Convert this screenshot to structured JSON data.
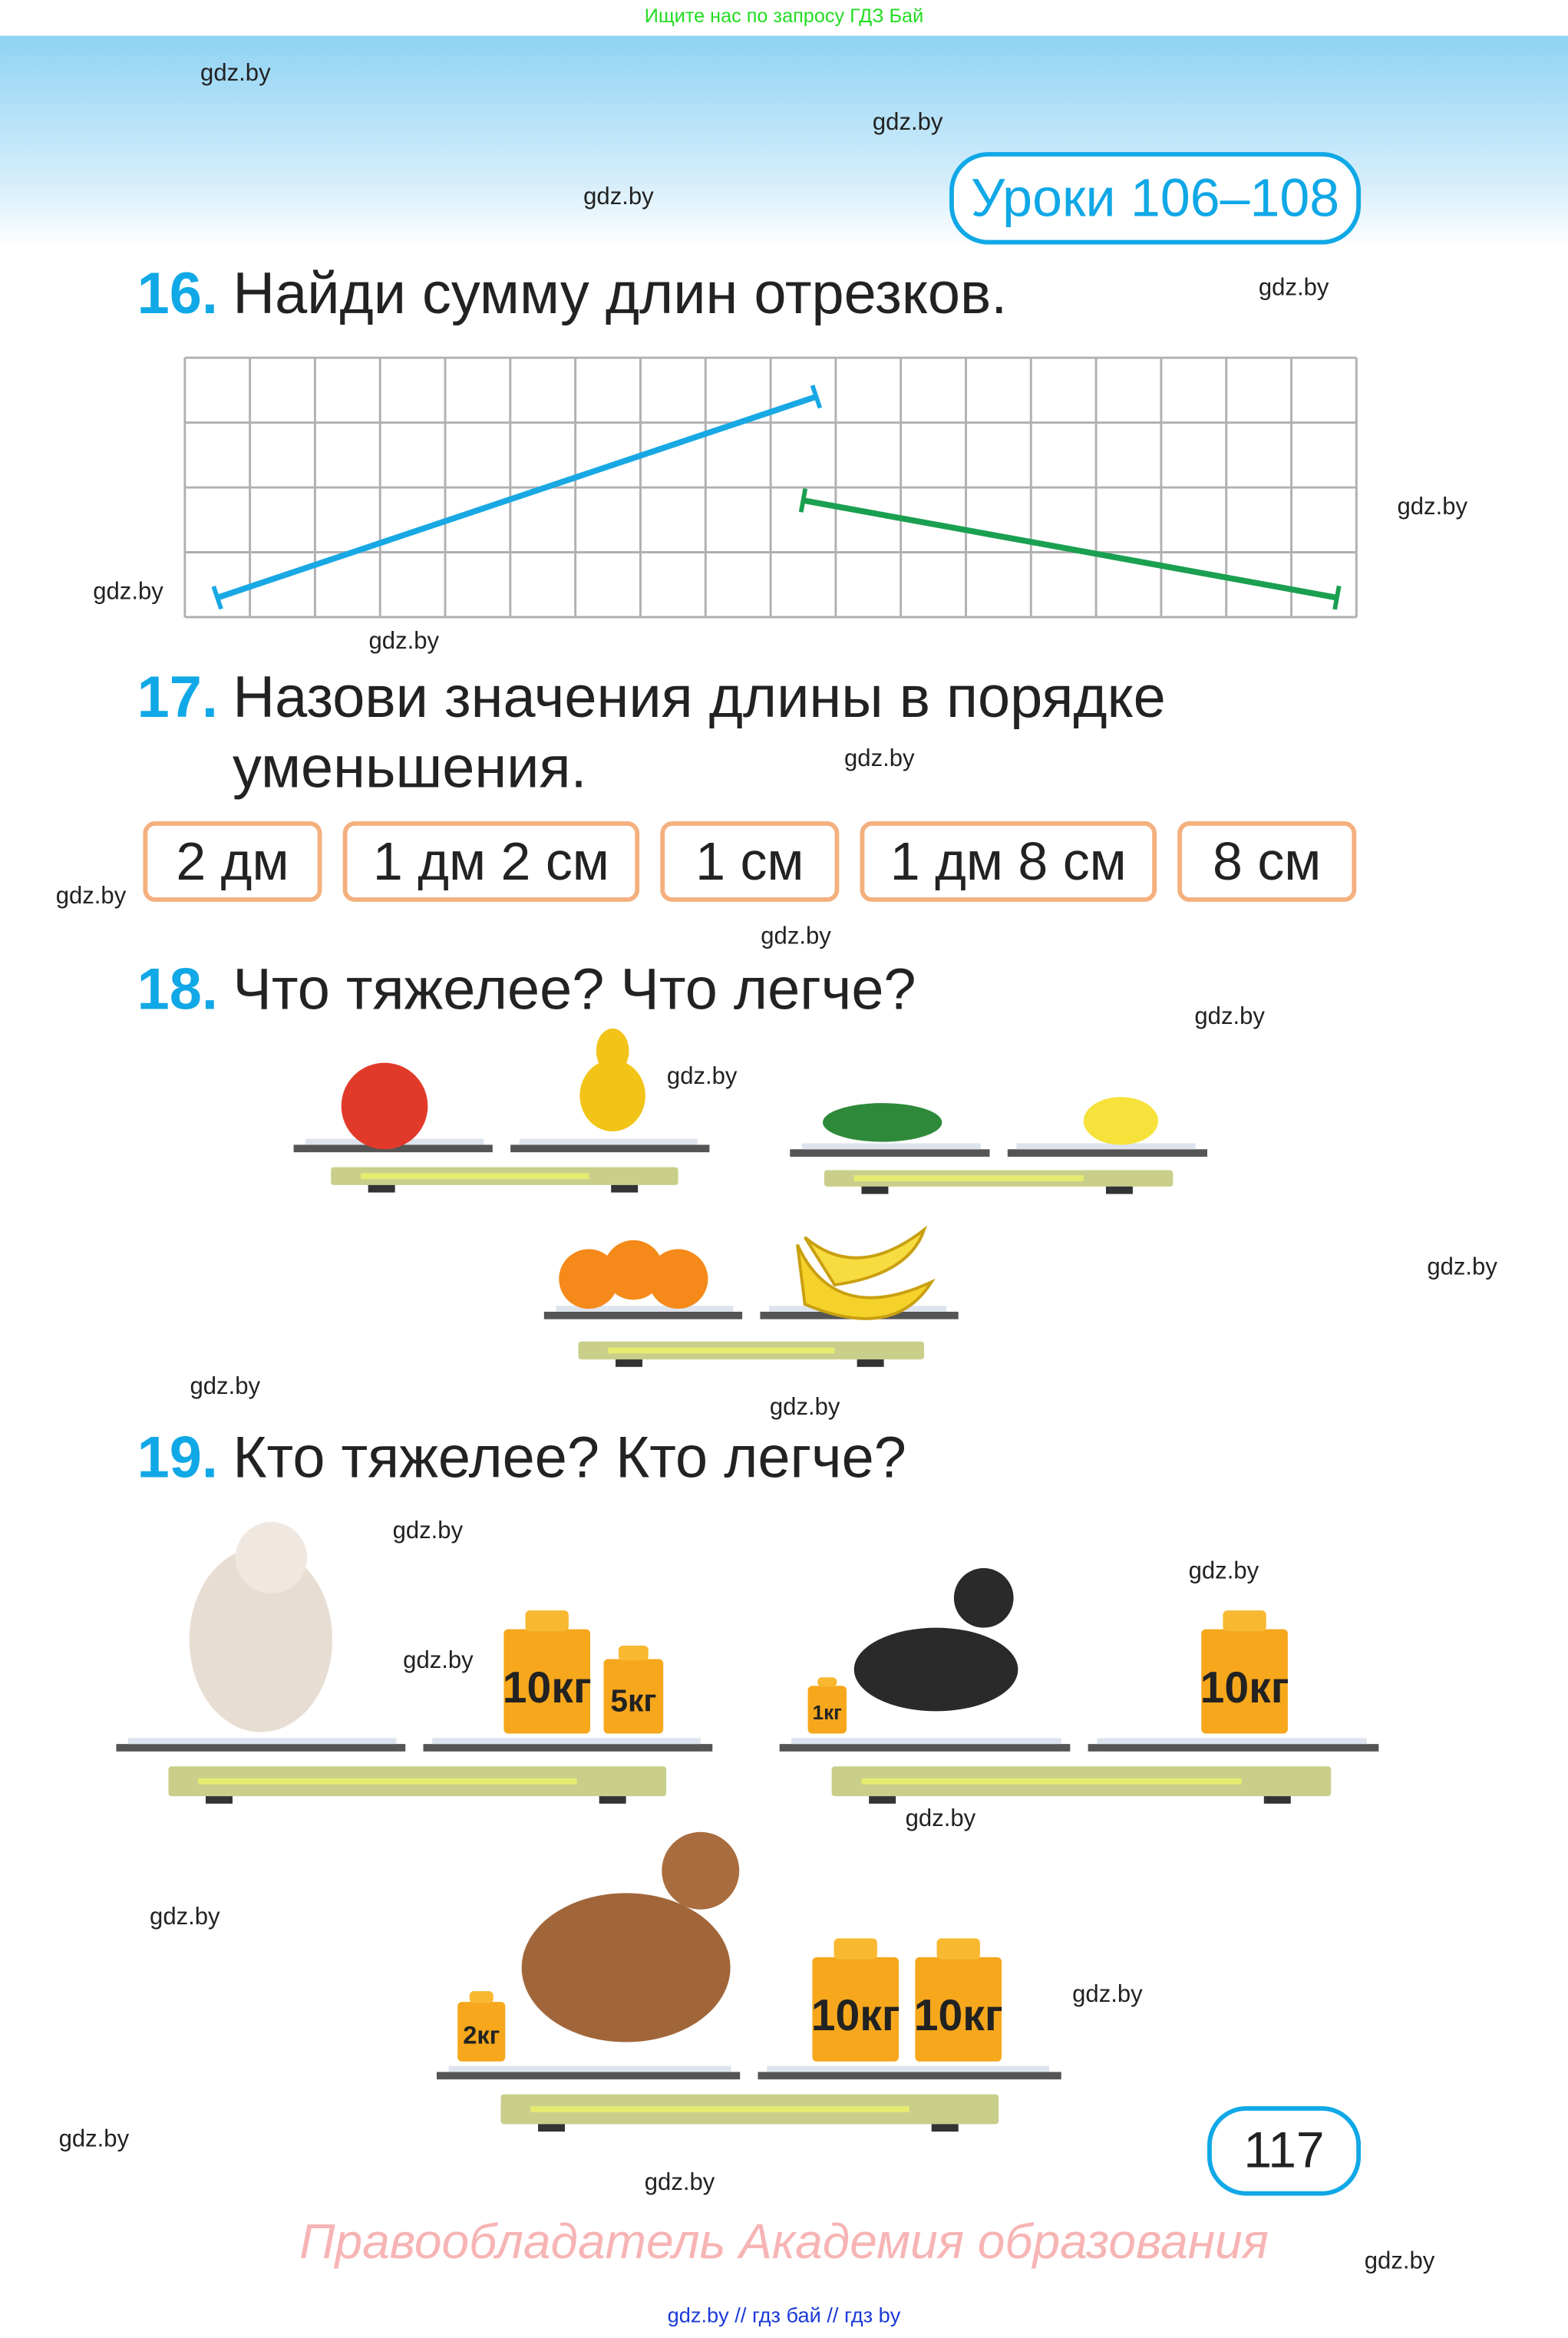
{
  "top_banner": "Ищите нас по запросу ГДЗ Бай",
  "lessons_badge": "Уроки 106–108",
  "tasks": [
    {
      "number": "16.",
      "text": "Найди сумму длин отрезков."
    },
    {
      "number": "17.",
      "text_line1": "Назови значения длины в порядке",
      "text_line2": "уменьшения."
    },
    {
      "number": "18.",
      "text": "Что тяжелее? Что легче?"
    },
    {
      "number": "19.",
      "text": "Кто тяжелее? Кто легче?"
    }
  ],
  "grid": {
    "columns": 18,
    "rows": 4,
    "line_color": "#b0b0b0",
    "segments": [
      {
        "color": "#18a8e4",
        "from": [
          0.5,
          0.3
        ],
        "to": [
          9.7,
          3.4
        ]
      },
      {
        "color": "#1aa050",
        "from": [
          9.5,
          1.8
        ],
        "to": [
          17.7,
          0.3
        ]
      }
    ]
  },
  "lengths": [
    "2 дм",
    "1 дм 2 см",
    "1 см",
    "1 дм 8 см",
    "8 см"
  ],
  "fruit_scales": [
    {
      "left": "apple",
      "right": "pear"
    },
    {
      "left": "cucumber",
      "right": "lemon"
    },
    {
      "left": "oranges",
      "right": "bananas"
    }
  ],
  "dog_scales": [
    {
      "dog": "poodle",
      "weights": [
        "10кг",
        "5кг"
      ]
    },
    {
      "dog": "dachshund",
      "weights": [
        "1кг",
        "10кг"
      ]
    },
    {
      "dog": "spaniel",
      "weights": [
        "2кг",
        "10кг",
        "10кг"
      ]
    }
  ],
  "page_number": "117",
  "rights_holder": "Правообладатель Академия образования",
  "footer": "gdz.by  //  гдз бай  //  гдз by",
  "watermark": "gdz.by",
  "colors": {
    "accent": "#10a8e6",
    "box_border": "#f4b07e",
    "banner": "#22dd22",
    "rights": "#f7b4b4",
    "footer": "#1a3ad8"
  }
}
